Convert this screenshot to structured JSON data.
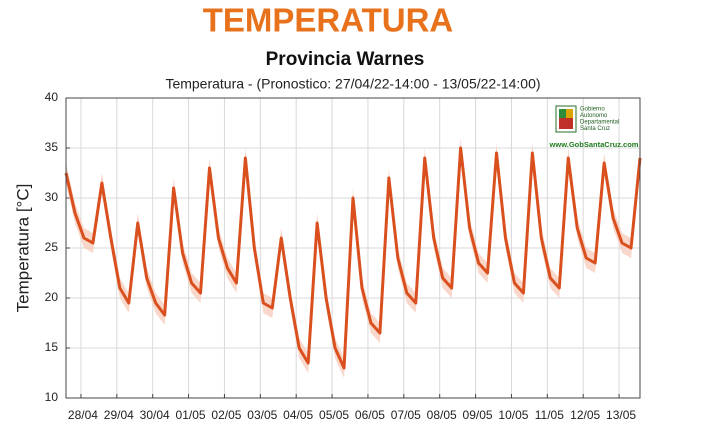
{
  "chart_data": {
    "type": "line",
    "title": "TEMPERATURA",
    "subtitle": "Provincia Warnes",
    "plot_title": "Temperatura - (Pronostico: 27/04/22-14:00 - 13/05/22-14:00)",
    "ylabel": "Temperatura [°C]",
    "logo": {
      "lines": [
        "Gobierno",
        "Autonomo",
        "Departamental",
        "Santa Cruz"
      ],
      "url": "www.GobSantaCruz.com"
    },
    "color": "#d9501e",
    "band_color": "#f7cdbd",
    "grid": true,
    "ylim": [
      10,
      40
    ],
    "yticks": [
      10,
      15,
      20,
      25,
      30,
      35,
      40
    ],
    "xlim": [
      "2022-04-27T14:00",
      "2022-05-13T14:00"
    ],
    "xticks": [
      {
        "value": "2022-04-28T00:00",
        "label": "28/04"
      },
      {
        "value": "2022-04-29T00:00",
        "label": "29/04"
      },
      {
        "value": "2022-04-30T00:00",
        "label": "30/04"
      },
      {
        "value": "2022-05-01T00:00",
        "label": "01/05"
      },
      {
        "value": "2022-05-02T00:00",
        "label": "02/05"
      },
      {
        "value": "2022-05-03T00:00",
        "label": "03/05"
      },
      {
        "value": "2022-05-04T00:00",
        "label": "04/05"
      },
      {
        "value": "2022-05-05T00:00",
        "label": "05/05"
      },
      {
        "value": "2022-05-06T00:00",
        "label": "06/05"
      },
      {
        "value": "2022-05-07T00:00",
        "label": "07/05"
      },
      {
        "value": "2022-05-08T00:00",
        "label": "08/05"
      },
      {
        "value": "2022-05-09T00:00",
        "label": "09/05"
      },
      {
        "value": "2022-05-10T00:00",
        "label": "10/05"
      },
      {
        "value": "2022-05-11T00:00",
        "label": "11/05"
      },
      {
        "value": "2022-05-12T00:00",
        "label": "12/05"
      },
      {
        "value": "2022-05-13T00:00",
        "label": "13/05"
      }
    ],
    "x": [
      "2022-04-27T14:00",
      "2022-04-27T20:00",
      "2022-04-28T02:00",
      "2022-04-28T08:00",
      "2022-04-28T14:00",
      "2022-04-28T20:00",
      "2022-04-29T02:00",
      "2022-04-29T08:00",
      "2022-04-29T14:00",
      "2022-04-29T20:00",
      "2022-04-30T02:00",
      "2022-04-30T08:00",
      "2022-04-30T14:00",
      "2022-04-30T20:00",
      "2022-05-01T02:00",
      "2022-05-01T08:00",
      "2022-05-01T14:00",
      "2022-05-01T20:00",
      "2022-05-02T02:00",
      "2022-05-02T08:00",
      "2022-05-02T14:00",
      "2022-05-02T20:00",
      "2022-05-03T02:00",
      "2022-05-03T08:00",
      "2022-05-03T14:00",
      "2022-05-03T20:00",
      "2022-05-04T02:00",
      "2022-05-04T08:00",
      "2022-05-04T14:00",
      "2022-05-04T20:00",
      "2022-05-05T02:00",
      "2022-05-05T08:00",
      "2022-05-05T14:00",
      "2022-05-05T20:00",
      "2022-05-06T02:00",
      "2022-05-06T08:00",
      "2022-05-06T14:00",
      "2022-05-06T20:00",
      "2022-05-07T02:00",
      "2022-05-07T08:00",
      "2022-05-07T14:00",
      "2022-05-07T20:00",
      "2022-05-08T02:00",
      "2022-05-08T08:00",
      "2022-05-08T14:00",
      "2022-05-08T20:00",
      "2022-05-09T02:00",
      "2022-05-09T08:00",
      "2022-05-09T14:00",
      "2022-05-09T20:00",
      "2022-05-10T02:00",
      "2022-05-10T08:00",
      "2022-05-10T14:00",
      "2022-05-10T20:00",
      "2022-05-11T02:00",
      "2022-05-11T08:00",
      "2022-05-11T14:00",
      "2022-05-11T20:00",
      "2022-05-12T02:00",
      "2022-05-12T08:00",
      "2022-05-12T14:00",
      "2022-05-12T20:00",
      "2022-05-13T02:00",
      "2022-05-13T08:00",
      "2022-05-13T14:00"
    ],
    "values": [
      32.5,
      28.5,
      26,
      25.5,
      31.5,
      26,
      21,
      19.5,
      27.5,
      22,
      19.5,
      18.3,
      31,
      24.5,
      21.5,
      20.5,
      33,
      26,
      23,
      21.5,
      34,
      25,
      19.5,
      19,
      26,
      20,
      15,
      13.5,
      27.5,
      20,
      15,
      13,
      30,
      21,
      17.5,
      16.5,
      32,
      24,
      20.5,
      19.5,
      34,
      26,
      22,
      21,
      35,
      27,
      23.5,
      22.5,
      34.5,
      26,
      21.5,
      20.5,
      34.5,
      26,
      22,
      21,
      34,
      27,
      24,
      23.5,
      33.5,
      28,
      25.5,
      25,
      34
    ],
    "band": {
      "high": [
        33.5,
        29.5,
        27,
        26.5,
        32.5,
        27,
        22,
        20.5,
        28.5,
        23,
        20.5,
        19.3,
        32,
        25.5,
        22.5,
        21.5,
        34,
        27,
        24,
        22.5,
        35,
        26,
        20.5,
        20,
        27,
        21,
        16,
        14.5,
        28.5,
        21,
        16,
        14,
        31,
        22,
        18.5,
        17.5,
        33,
        25,
        21.5,
        20.5,
        35,
        27,
        23,
        22,
        36,
        28,
        24.5,
        23.5,
        35.5,
        27,
        22.5,
        21.5,
        35.5,
        27,
        23,
        22,
        35,
        28,
        25,
        24.5,
        34.5,
        29,
        26.5,
        26,
        35
      ],
      "low": [
        31.5,
        27.5,
        25,
        24.5,
        30.5,
        25,
        20,
        18.5,
        26.5,
        21,
        18.5,
        17.3,
        30,
        23.5,
        20.5,
        19.5,
        32,
        25,
        22,
        20.5,
        33,
        24,
        18.5,
        18,
        25,
        19,
        14,
        12.5,
        26.5,
        19,
        14,
        12,
        29,
        20,
        16.5,
        15.5,
        31,
        23,
        19.5,
        18.5,
        33,
        25,
        21,
        20,
        34,
        26,
        22.5,
        21.5,
        33.5,
        25,
        20.5,
        19.5,
        33.5,
        25,
        21,
        20,
        33,
        26,
        23,
        22.5,
        32.5,
        27,
        24.5,
        24,
        33
      ]
    }
  }
}
